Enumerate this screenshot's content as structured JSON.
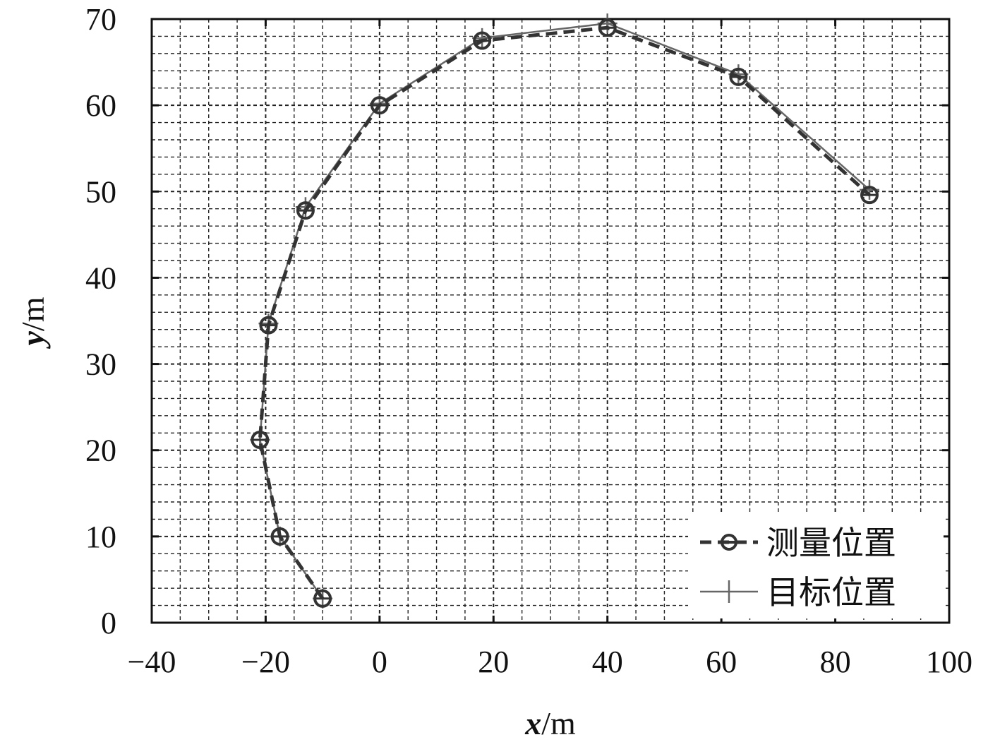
{
  "chart_data": {
    "type": "line",
    "xlabel_var": "x",
    "xlabel_unit": "/m",
    "ylabel_var": "y",
    "ylabel_unit": "/m",
    "xlim": [
      -40,
      100
    ],
    "ylim": [
      0,
      70
    ],
    "x_ticks": [
      -40,
      -20,
      0,
      20,
      40,
      60,
      80,
      100
    ],
    "y_ticks": [
      0,
      10,
      20,
      30,
      40,
      50,
      60,
      70
    ],
    "x_tick_labels": [
      "−40",
      "−20",
      "0",
      "20",
      "40",
      "60",
      "80",
      "100"
    ],
    "y_tick_labels": [
      "0",
      "10",
      "20",
      "30",
      "40",
      "50",
      "60",
      "70"
    ],
    "grid": true,
    "legend_position": "bottom-right",
    "series": [
      {
        "name": "测量位置",
        "style": "dashed",
        "marker": "circle",
        "color": "#333333",
        "points": [
          [
            -10,
            2.8
          ],
          [
            -17.5,
            10
          ],
          [
            -21,
            21.2
          ],
          [
            -19.5,
            34.5
          ],
          [
            -13,
            47.8
          ],
          [
            0,
            60
          ],
          [
            18,
            67.5
          ],
          [
            40,
            69
          ],
          [
            63,
            63.3
          ],
          [
            86,
            49.6
          ]
        ]
      },
      {
        "name": "目标位置",
        "style": "solid",
        "marker": "plus",
        "color": "#666666",
        "points": [
          [
            -10,
            2.8
          ],
          [
            -17.5,
            10
          ],
          [
            -21,
            21.2
          ],
          [
            -19.5,
            34.7
          ],
          [
            -13,
            48.2
          ],
          [
            0,
            60.2
          ],
          [
            18,
            67.8
          ],
          [
            40,
            69.5
          ],
          [
            63,
            63.6
          ],
          [
            86,
            50.2
          ]
        ]
      }
    ]
  }
}
